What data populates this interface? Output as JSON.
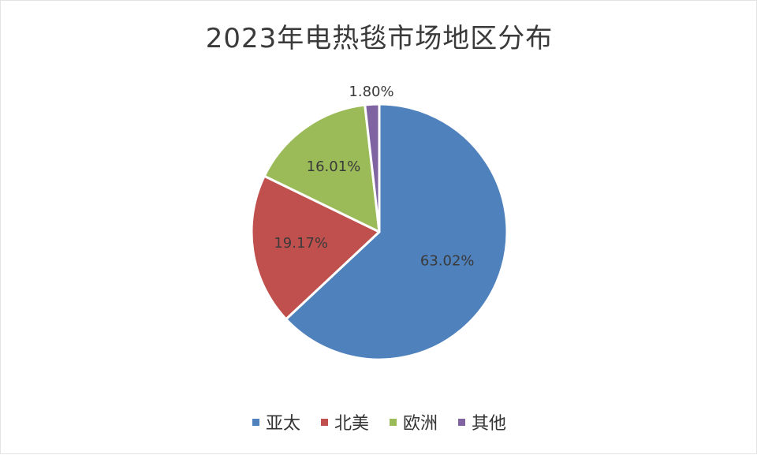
{
  "chart_data": {
    "type": "pie",
    "title": "2023年电热毯市场地区分布",
    "slices": [
      {
        "label": "亚太",
        "value": 63.02,
        "display": "63.02%",
        "color": "#4f81bd"
      },
      {
        "label": "北美",
        "value": 19.17,
        "display": "19.17%",
        "color": "#c0504d"
      },
      {
        "label": "欧洲",
        "value": 16.01,
        "display": "16.01%",
        "color": "#9bbb59"
      },
      {
        "label": "其他",
        "value": 1.8,
        "display": "1.80%",
        "color": "#8064a2"
      }
    ],
    "legend_position": "bottom",
    "start_angle": "12 o'clock",
    "direction": "clockwise"
  }
}
